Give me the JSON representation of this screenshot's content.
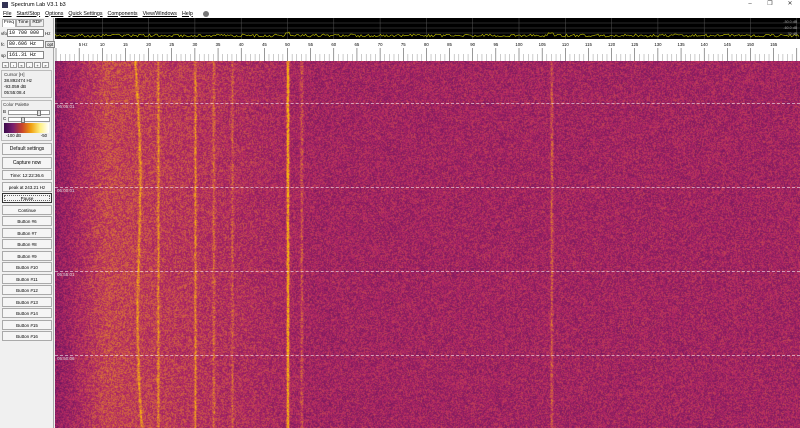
{
  "window": {
    "title": "Spectrum Lab V3.1 b3",
    "minimize": "–",
    "maximize": "❐",
    "close": "✕"
  },
  "menu": [
    "File",
    "Start/Stop",
    "Options",
    "Quick Settings",
    "Components",
    "View/Windows",
    "Help"
  ],
  "left_panel": {
    "tabs": [
      "Freq",
      "Time",
      "RDF"
    ],
    "vfo": {
      "label": "vfo",
      "value": "10 700 000",
      "unit": "Hz"
    },
    "fc": {
      "label": "fc",
      "value": "80.606 Hz",
      "button": "opt"
    },
    "sp": {
      "label": "sp",
      "value": "161.31 Hz"
    },
    "arrows": [
      "«",
      "‹",
      "«",
      "-",
      "+",
      "»"
    ],
    "cursor": {
      "title": "Cursor [H]",
      "freq": "38.892474 Hz",
      "level": "-93.059 dB",
      "time": "05:55:08.4"
    },
    "color_palette": {
      "title": "Color Palette",
      "b_label": "B",
      "c_label": "C",
      "b_level": 0.7,
      "c_level": 0.3,
      "min_label": "-100 dB",
      "max_label": "-50"
    },
    "buttons": [
      "Default settings",
      "Capture now",
      "Time:  12:22:36.6",
      "peak at 243.21 Hz",
      "Pause",
      "Continue",
      "Button #6",
      "Button #7",
      "Button #8",
      "Button #9",
      "Button #10",
      "Button #11",
      "Button #12",
      "Button #13",
      "Button #14",
      "Button #15",
      "Button #16"
    ]
  },
  "spectrum": {
    "db_labels": [
      "-50.0 dB",
      "-60.0 dB",
      "-70 dB"
    ],
    "trace_color": "#c8c800"
  },
  "axis": {
    "labels": [
      "5 Hz",
      "10",
      "15",
      "20",
      "25",
      "30",
      "35",
      "40",
      "45",
      "50",
      "55",
      "60",
      "65",
      "70",
      "75",
      "80",
      "85",
      "90",
      "95",
      "100",
      "105",
      "110",
      "115",
      "120",
      "125",
      "130",
      "135",
      "140",
      "145",
      "150",
      "155"
    ]
  },
  "waterfall": {
    "time_labels": [
      "06:05:01",
      "06:00:01",
      "05:55:01",
      "05:50:06"
    ],
    "bright_lines_hz": [
      17,
      22,
      30,
      34,
      38,
      50,
      53,
      107
    ]
  }
}
